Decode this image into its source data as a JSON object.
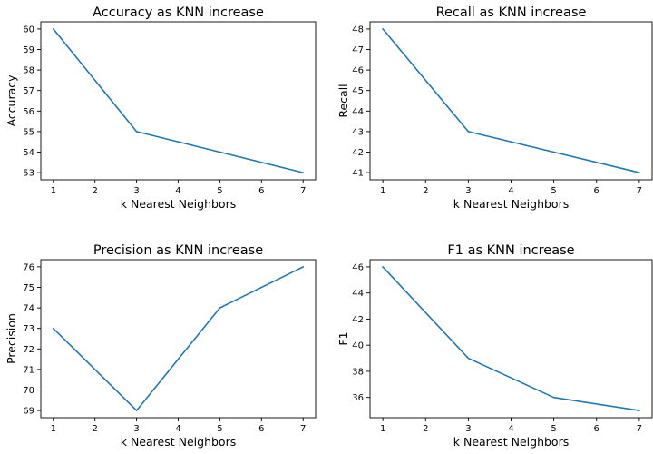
{
  "chart_data": [
    {
      "type": "line",
      "title": "Accuracy as KNN increase",
      "xlabel": "k Nearest Neighbors",
      "ylabel": "Accuracy",
      "x": [
        1,
        3,
        5,
        7
      ],
      "series": [
        {
          "values": [
            60,
            55,
            54,
            53
          ]
        }
      ],
      "xlim": [
        0.7,
        7.3
      ],
      "ylim": [
        52.65,
        60.35
      ],
      "xticks": [
        1,
        2,
        3,
        4,
        5,
        6,
        7
      ],
      "yticks": [
        53,
        54,
        55,
        56,
        57,
        58,
        59,
        60
      ],
      "grid": false,
      "color": "#1f77b4"
    },
    {
      "type": "line",
      "title": "Recall as KNN increase",
      "xlabel": "k Nearest Neighbors",
      "ylabel": "Recall",
      "x": [
        1,
        3,
        5,
        7
      ],
      "series": [
        {
          "values": [
            48,
            43,
            42,
            41
          ]
        }
      ],
      "xlim": [
        0.7,
        7.3
      ],
      "ylim": [
        40.65,
        48.35
      ],
      "xticks": [
        1,
        2,
        3,
        4,
        5,
        6,
        7
      ],
      "yticks": [
        41,
        42,
        43,
        44,
        45,
        46,
        47,
        48
      ],
      "grid": false,
      "color": "#1f77b4"
    },
    {
      "type": "line",
      "title": "Precision as KNN increase",
      "xlabel": "k Nearest Neighbors",
      "ylabel": "Precision",
      "x": [
        1,
        3,
        5,
        7
      ],
      "series": [
        {
          "values": [
            73,
            69,
            74,
            76
          ]
        }
      ],
      "xlim": [
        0.7,
        7.3
      ],
      "ylim": [
        68.65,
        76.35
      ],
      "xticks": [
        1,
        2,
        3,
        4,
        5,
        6,
        7
      ],
      "yticks": [
        69,
        70,
        71,
        72,
        73,
        74,
        75,
        76
      ],
      "grid": false,
      "color": "#1f77b4"
    },
    {
      "type": "line",
      "title": "F1 as KNN increase",
      "xlabel": "k Nearest Neighbors",
      "ylabel": "F1",
      "x": [
        1,
        3,
        5,
        7
      ],
      "series": [
        {
          "values": [
            46,
            39,
            36,
            35
          ]
        }
      ],
      "xlim": [
        0.7,
        7.3
      ],
      "ylim": [
        34.45,
        46.55
      ],
      "xticks": [
        1,
        2,
        3,
        4,
        5,
        6,
        7
      ],
      "yticks": [
        36,
        38,
        40,
        42,
        44,
        46
      ],
      "grid": false,
      "color": "#1f77b4"
    }
  ]
}
